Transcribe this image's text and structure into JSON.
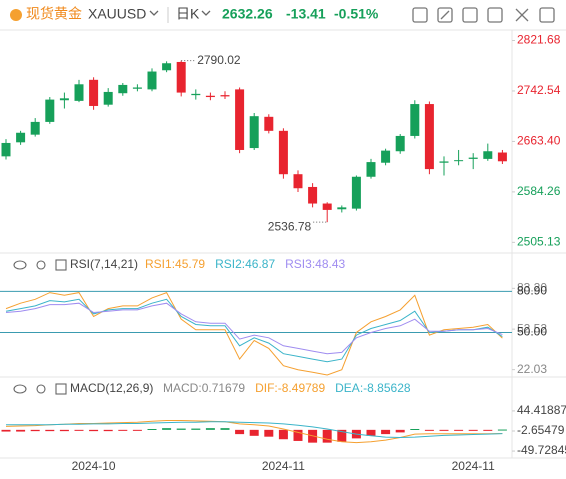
{
  "header": {
    "name": "现货黄金",
    "symbol": "XAUUSD",
    "period": "日K",
    "price": "2632.26",
    "change": "-13.41",
    "change_pct": "-0.51%"
  },
  "chart_data": [
    {
      "type": "candlestick",
      "categories": [
        null,
        null,
        null,
        null,
        null,
        null,
        "2024-10",
        null,
        null,
        null,
        null,
        null,
        null,
        null,
        null,
        null,
        null,
        null,
        null,
        "2024-11",
        null,
        null,
        null,
        null,
        null,
        null,
        null,
        null,
        null,
        null,
        null,
        null,
        "2024-11",
        null,
        null
      ],
      "open": [
        2640,
        2662,
        2674,
        2694,
        2728,
        2727,
        2760,
        2721,
        2739,
        2746,
        2745,
        2775,
        2788,
        2736,
        2735,
        2736,
        2745,
        2653,
        2702,
        2680,
        2612,
        2592,
        2566,
        2557,
        2558,
        2608,
        2630,
        2648,
        2672,
        2722,
        2630,
        2633,
        2636,
        2636,
        2646
      ],
      "high": [
        2667,
        2680,
        2700,
        2733,
        2740,
        2760,
        2764,
        2747,
        2755,
        2753,
        2778,
        2789,
        2790.02,
        2745,
        2740,
        2742,
        2748,
        2708,
        2706,
        2684,
        2618,
        2598,
        2568,
        2563,
        2610,
        2636,
        2652,
        2675,
        2728,
        2726,
        2640,
        2650,
        2645,
        2660,
        2650
      ],
      "low": [
        2635,
        2658,
        2671,
        2691,
        2715,
        2725,
        2713,
        2718,
        2735,
        2742,
        2742,
        2772,
        2734,
        2729,
        2728,
        2730,
        2645,
        2650,
        2676,
        2605,
        2584,
        2560,
        2536.78,
        2552,
        2555,
        2605,
        2626,
        2644,
        2668,
        2612,
        2610,
        2626,
        2620,
        2633,
        2628
      ],
      "close": [
        2661,
        2677,
        2694,
        2729,
        2731,
        2753,
        2719,
        2741,
        2752,
        2748,
        2773,
        2786,
        2740,
        2738,
        2733,
        2734,
        2650,
        2703,
        2680,
        2612,
        2590,
        2566,
        2556,
        2560,
        2608,
        2631,
        2649,
        2672,
        2722,
        2620,
        2632,
        2634,
        2638,
        2648,
        2632.26
      ],
      "up_color": "#16a05a",
      "down_color": "#e8242f",
      "ylim": [
        2490,
        2835
      ],
      "yticks": [
        2821.68,
        2742.54,
        {
          "value": 2663.4,
          "label": "2663.40"
        },
        2584.26,
        2505.13
      ]
    },
    {
      "type": "line",
      "title": "RSI(7,14,21)",
      "series": [
        {
          "name": "RSI1",
          "color": "#f5a030",
          "values": [
            68,
            72,
            75,
            80,
            78,
            80,
            62,
            68,
            70,
            70,
            76,
            80,
            60,
            52,
            52,
            52,
            30,
            44,
            38,
            25,
            22,
            20,
            18,
            22,
            50,
            58,
            62,
            67,
            78,
            48,
            52,
            53,
            54,
            56,
            45.79
          ]
        },
        {
          "name": "RSI2",
          "color": "#3bb4c9",
          "values": [
            66,
            68,
            70,
            74,
            73,
            75,
            64,
            67,
            68,
            68,
            72,
            75,
            62,
            56,
            55,
            55,
            40,
            46,
            42,
            34,
            32,
            30,
            28,
            30,
            48,
            53,
            56,
            59,
            66,
            50,
            51,
            52,
            52,
            54,
            46.87
          ]
        },
        {
          "name": "RSI3",
          "color": "#9f8cf0",
          "values": [
            65,
            66,
            68,
            71,
            71,
            72,
            65,
            66,
            67,
            67,
            70,
            72,
            64,
            58,
            57,
            57,
            45,
            48,
            46,
            40,
            38,
            36,
            34,
            35,
            46,
            50,
            53,
            55,
            60,
            51,
            51,
            52,
            52,
            53,
            48.43
          ]
        }
      ],
      "ylim": [
        18,
        91
      ],
      "yticks": [
        {
          "value": 83.2,
          "label": "83.20"
        },
        {
          "value": 80.9,
          "label": "80.90",
          "line_color": "#3a9bb0"
        },
        52.52,
        {
          "value": 50.0,
          "label": "50.00",
          "line_color": "#3a9bb0"
        },
        22.03
      ]
    },
    {
      "type": "macd",
      "title": "MACD(12,26,9)",
      "series": [
        {
          "name": "MACD",
          "color": "#888888",
          "values": [
            -4,
            -4,
            -3,
            -3,
            -3,
            -2,
            -3,
            -3,
            -2,
            -2,
            2,
            4,
            3,
            3,
            4,
            4,
            -10,
            -14,
            -16,
            -22,
            -26,
            -30,
            -30,
            -28,
            -20,
            -14,
            -10,
            -6,
            2,
            -2,
            -1,
            -1,
            -1,
            -1,
            0.71679
          ]
        },
        {
          "name": "DIF",
          "color": "#f5a030",
          "values": [
            8,
            9,
            10,
            12,
            13,
            15,
            15,
            16,
            17,
            18,
            20,
            22,
            22,
            21,
            20,
            19,
            14,
            12,
            9,
            2,
            -6,
            -14,
            -22,
            -28,
            -30,
            -28,
            -24,
            -18,
            -10,
            -9,
            -9,
            -9,
            -9,
            -9,
            -8.49789
          ]
        },
        {
          "name": "DEA",
          "color": "#3bb4c9",
          "values": [
            12,
            12,
            12,
            12,
            13,
            13,
            14,
            14,
            15,
            15,
            16,
            17,
            18,
            18,
            19,
            19,
            18,
            17,
            16,
            14,
            11,
            7,
            2,
            -4,
            -10,
            -14,
            -17,
            -18,
            -17,
            -15,
            -13,
            -12,
            -11,
            -10,
            -8.85628
          ]
        }
      ],
      "up_color": "#16a05a",
      "down_color": "#e8242f",
      "ylim": [
        -66,
        70
      ],
      "yticks": [
        44.41887,
        -2.65479,
        -49.72845
      ]
    }
  ]
}
